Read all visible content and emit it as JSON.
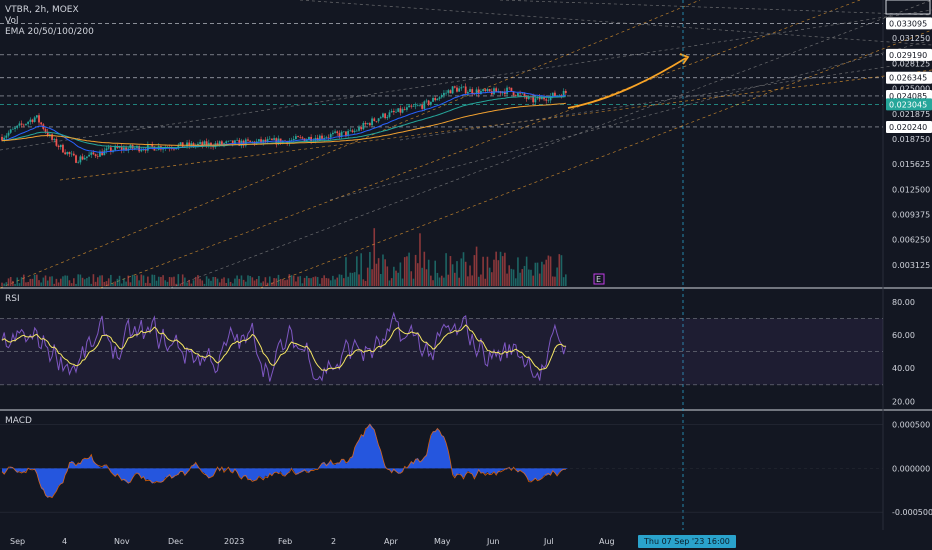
{
  "chart_data": [
    {
      "type": "line",
      "panel": "price",
      "title": "VTBR, 2h, MOEX",
      "legend": [
        "Vol",
        "EMA 20/50/100/200"
      ],
      "y_ticks": [
        "0.031250",
        "0.028125",
        "0.025000",
        "0.021875",
        "0.018750",
        "0.015625",
        "0.012500",
        "0.009375",
        "0.006250",
        "0.003125"
      ],
      "price_tags": [
        "0.033095",
        "0.029190",
        "0.026345",
        "0.024085",
        "0.023045",
        "0.020240"
      ],
      "current_price": "0.023045",
      "ylim": [
        0.001,
        0.035
      ]
    },
    {
      "type": "line",
      "panel": "rsi",
      "title": "RSI",
      "y_ticks": [
        "80.00",
        "60.00",
        "40.00",
        "20.00"
      ],
      "ylim": [
        16,
        86
      ],
      "band": [
        30,
        70
      ]
    },
    {
      "type": "bar",
      "panel": "macd",
      "title": "MACD",
      "y_ticks": [
        "0.000500",
        "0.000000",
        "-0.000500"
      ],
      "ylim": [
        -0.00068,
        0.00062
      ]
    }
  ],
  "x_axis": {
    "ticks": [
      "Sep",
      "4",
      "Nov",
      "Dec",
      "2023",
      "Feb",
      "2",
      "Apr",
      "May",
      "Jun",
      "Jul",
      "Aug"
    ]
  },
  "crosshair_label": "Thu 07 Sep '23   16:00",
  "event_marker": "E",
  "colors": {
    "background": "#131722",
    "candle_up": "#26a69a",
    "candle_down": "#ef5350",
    "ema20": "#2962ff",
    "ema50": "#26a69a",
    "ema100": "#f0a030",
    "projection_arrow": "#f7a326",
    "rsi_line": "#7e57c2",
    "rsi_ma": "#f5e663",
    "macd_hist": "#2962ff",
    "price_tag_current": "#26a69a",
    "crosshair": "#2aa3cc"
  }
}
